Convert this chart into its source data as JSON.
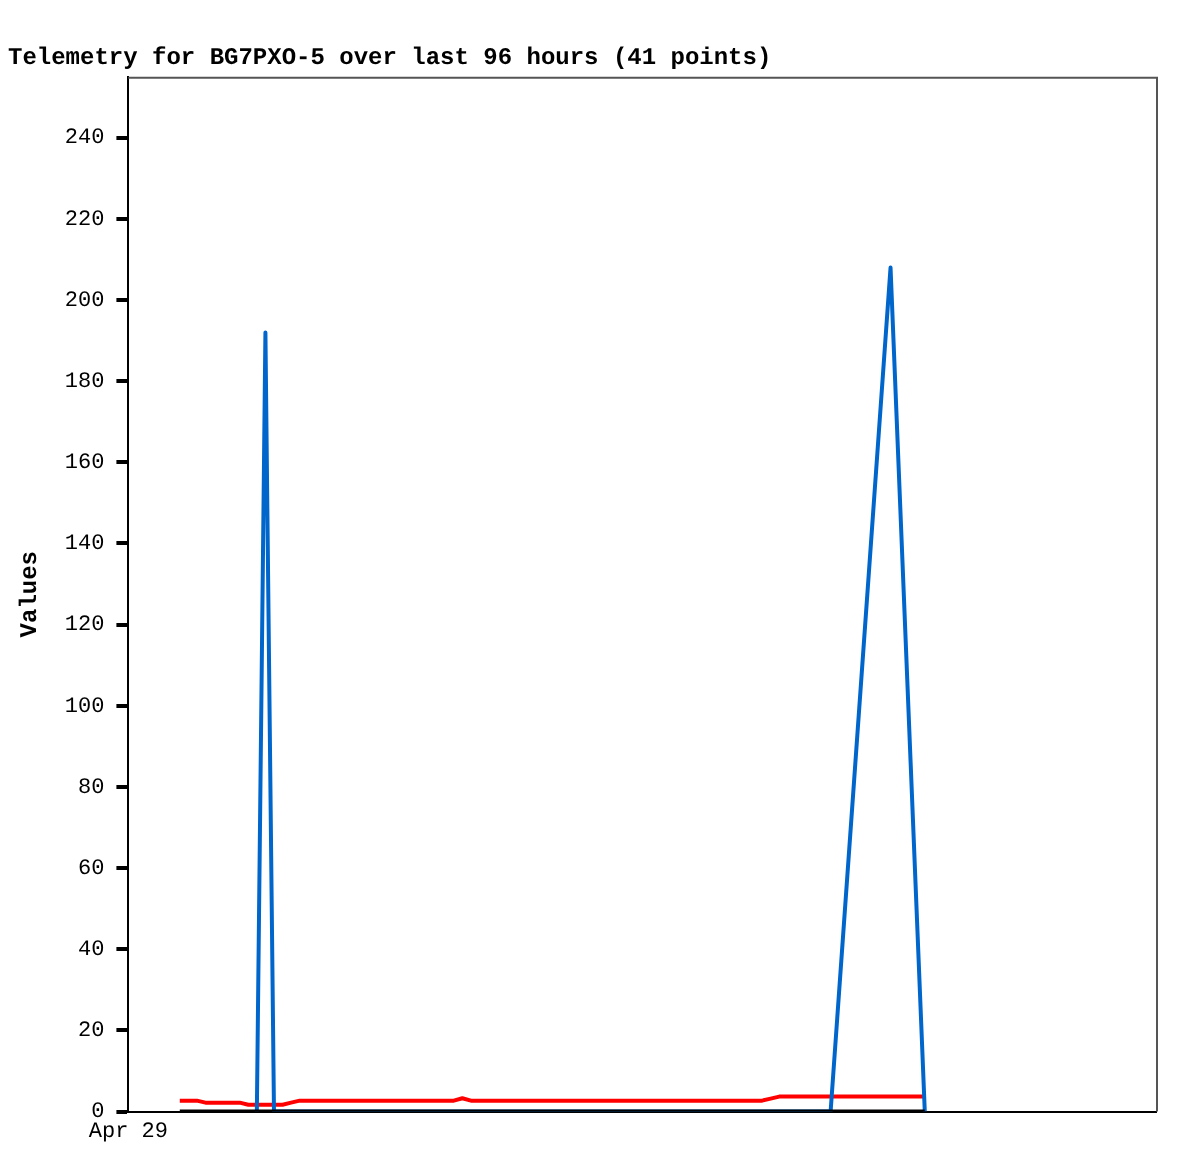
{
  "chart_data": {
    "type": "line",
    "title": "Telemetry for BG7PXO-5 over last 96 hours (41 points)",
    "ylabel": "Values",
    "categories": [
      "Apr 29",
      null,
      null,
      null,
      null,
      null,
      null,
      null,
      null,
      null,
      null,
      null,
      null,
      null,
      null,
      null,
      null,
      null,
      null,
      null,
      null,
      null,
      null,
      null,
      null,
      null,
      null,
      null,
      null,
      null,
      null,
      null,
      null,
      null,
      null,
      null,
      null,
      null,
      null,
      null,
      null,
      null,
      null,
      null,
      null,
      null,
      null,
      null,
      null,
      null,
      null,
      null,
      null,
      null,
      null,
      null,
      null,
      null,
      null,
      null,
      null,
      null,
      null,
      null,
      null,
      null,
      null,
      null,
      null,
      null,
      null,
      null,
      null,
      null,
      null,
      null,
      null,
      null,
      null,
      null,
      null,
      null,
      null,
      null,
      null,
      null,
      null,
      null,
      null,
      null,
      null,
      null,
      null,
      null,
      null,
      null,
      null,
      null,
      null,
      null,
      null,
      null,
      null,
      null,
      null,
      null,
      null,
      null,
      null,
      null,
      null,
      null,
      null,
      null,
      null,
      null,
      null,
      null,
      null,
      null,
      null
    ],
    "ylim": [
      0,
      255
    ],
    "yticks": [
      0,
      20,
      40,
      60,
      80,
      100,
      120,
      140,
      160,
      180,
      200,
      220,
      240
    ],
    "grid": false,
    "marker": "none",
    "line_style": "solid",
    "series": [
      {
        "color": "#ff0000",
        "values": [
          null,
          null,
          null,
          null,
          null,
          null,
          2.7,
          2.7,
          2.7,
          2.2,
          2.2,
          2.2,
          2.2,
          2.2,
          1.7,
          1.7,
          1.7,
          1.7,
          1.7,
          2.2,
          2.7,
          2.7,
          2.7,
          2.7,
          2.7,
          2.7,
          2.7,
          2.7,
          2.7,
          2.7,
          2.7,
          2.7,
          2.7,
          2.7,
          2.7,
          2.7,
          2.7,
          2.7,
          2.7,
          3.3,
          2.7,
          2.7,
          2.7,
          2.7,
          2.7,
          2.7,
          2.7,
          2.7,
          2.7,
          2.7,
          2.7,
          2.7,
          2.7,
          2.7,
          2.7,
          2.7,
          2.7,
          2.7,
          2.7,
          2.7,
          2.7,
          2.7,
          2.7,
          2.7,
          2.7,
          2.7,
          2.7,
          2.7,
          2.7,
          2.7,
          2.7,
          2.7,
          2.7,
          2.7,
          2.7,
          3.2,
          3.7,
          3.7,
          3.7,
          3.7,
          3.7,
          3.7,
          3.7,
          3.7,
          3.7,
          3.7,
          3.7,
          3.7,
          3.7,
          3.7,
          3.7,
          3.7,
          3.7,
          3.7,
          null,
          null,
          null,
          null,
          null,
          null,
          null,
          null,
          null,
          null,
          null,
          null,
          null,
          null,
          null,
          null,
          null,
          null,
          null,
          null,
          null,
          null,
          null,
          null,
          null,
          null,
          null
        ]
      },
      {
        "color": "#0066cc",
        "values": [
          null,
          null,
          null,
          null,
          null,
          null,
          null,
          null,
          null,
          null,
          null,
          null,
          null,
          null,
          null,
          0,
          192,
          0,
          null,
          null,
          null,
          null,
          null,
          null,
          null,
          null,
          null,
          null,
          null,
          null,
          null,
          null,
          null,
          null,
          null,
          null,
          null,
          null,
          null,
          null,
          null,
          null,
          null,
          null,
          null,
          null,
          null,
          null,
          null,
          null,
          null,
          null,
          null,
          null,
          null,
          null,
          null,
          null,
          null,
          null,
          null,
          null,
          null,
          null,
          null,
          null,
          null,
          null,
          null,
          null,
          null,
          null,
          null,
          null,
          null,
          null,
          null,
          null,
          null,
          null,
          null,
          null,
          0,
          null,
          null,
          null,
          null,
          null,
          null,
          208,
          null,
          null,
          null,
          0,
          null,
          null,
          null,
          null,
          null,
          null,
          null,
          null,
          null,
          null,
          null,
          null,
          null,
          null,
          null,
          null,
          null,
          null,
          null,
          null,
          null,
          null,
          null,
          null,
          null,
          null,
          null
        ]
      },
      {
        "color": "#000000",
        "values": [
          null,
          null,
          null,
          null,
          null,
          null,
          0,
          null,
          null,
          null,
          null,
          null,
          null,
          null,
          null,
          null,
          null,
          null,
          null,
          null,
          null,
          null,
          null,
          null,
          null,
          null,
          null,
          null,
          null,
          null,
          null,
          null,
          null,
          null,
          null,
          null,
          null,
          null,
          null,
          null,
          null,
          null,
          null,
          null,
          null,
          null,
          null,
          null,
          null,
          null,
          null,
          null,
          null,
          null,
          null,
          null,
          null,
          null,
          null,
          null,
          null,
          null,
          null,
          null,
          null,
          null,
          null,
          null,
          null,
          null,
          null,
          null,
          null,
          null,
          null,
          null,
          null,
          null,
          null,
          null,
          null,
          null,
          null,
          null,
          null,
          null,
          null,
          null,
          null,
          null,
          null,
          null,
          null,
          0,
          null,
          null,
          null,
          null,
          null,
          null,
          null,
          null,
          null,
          null,
          null,
          null,
          null,
          null,
          null,
          null,
          null,
          null,
          null,
          null,
          null,
          null,
          null,
          null,
          null,
          null,
          null
        ]
      }
    ]
  }
}
